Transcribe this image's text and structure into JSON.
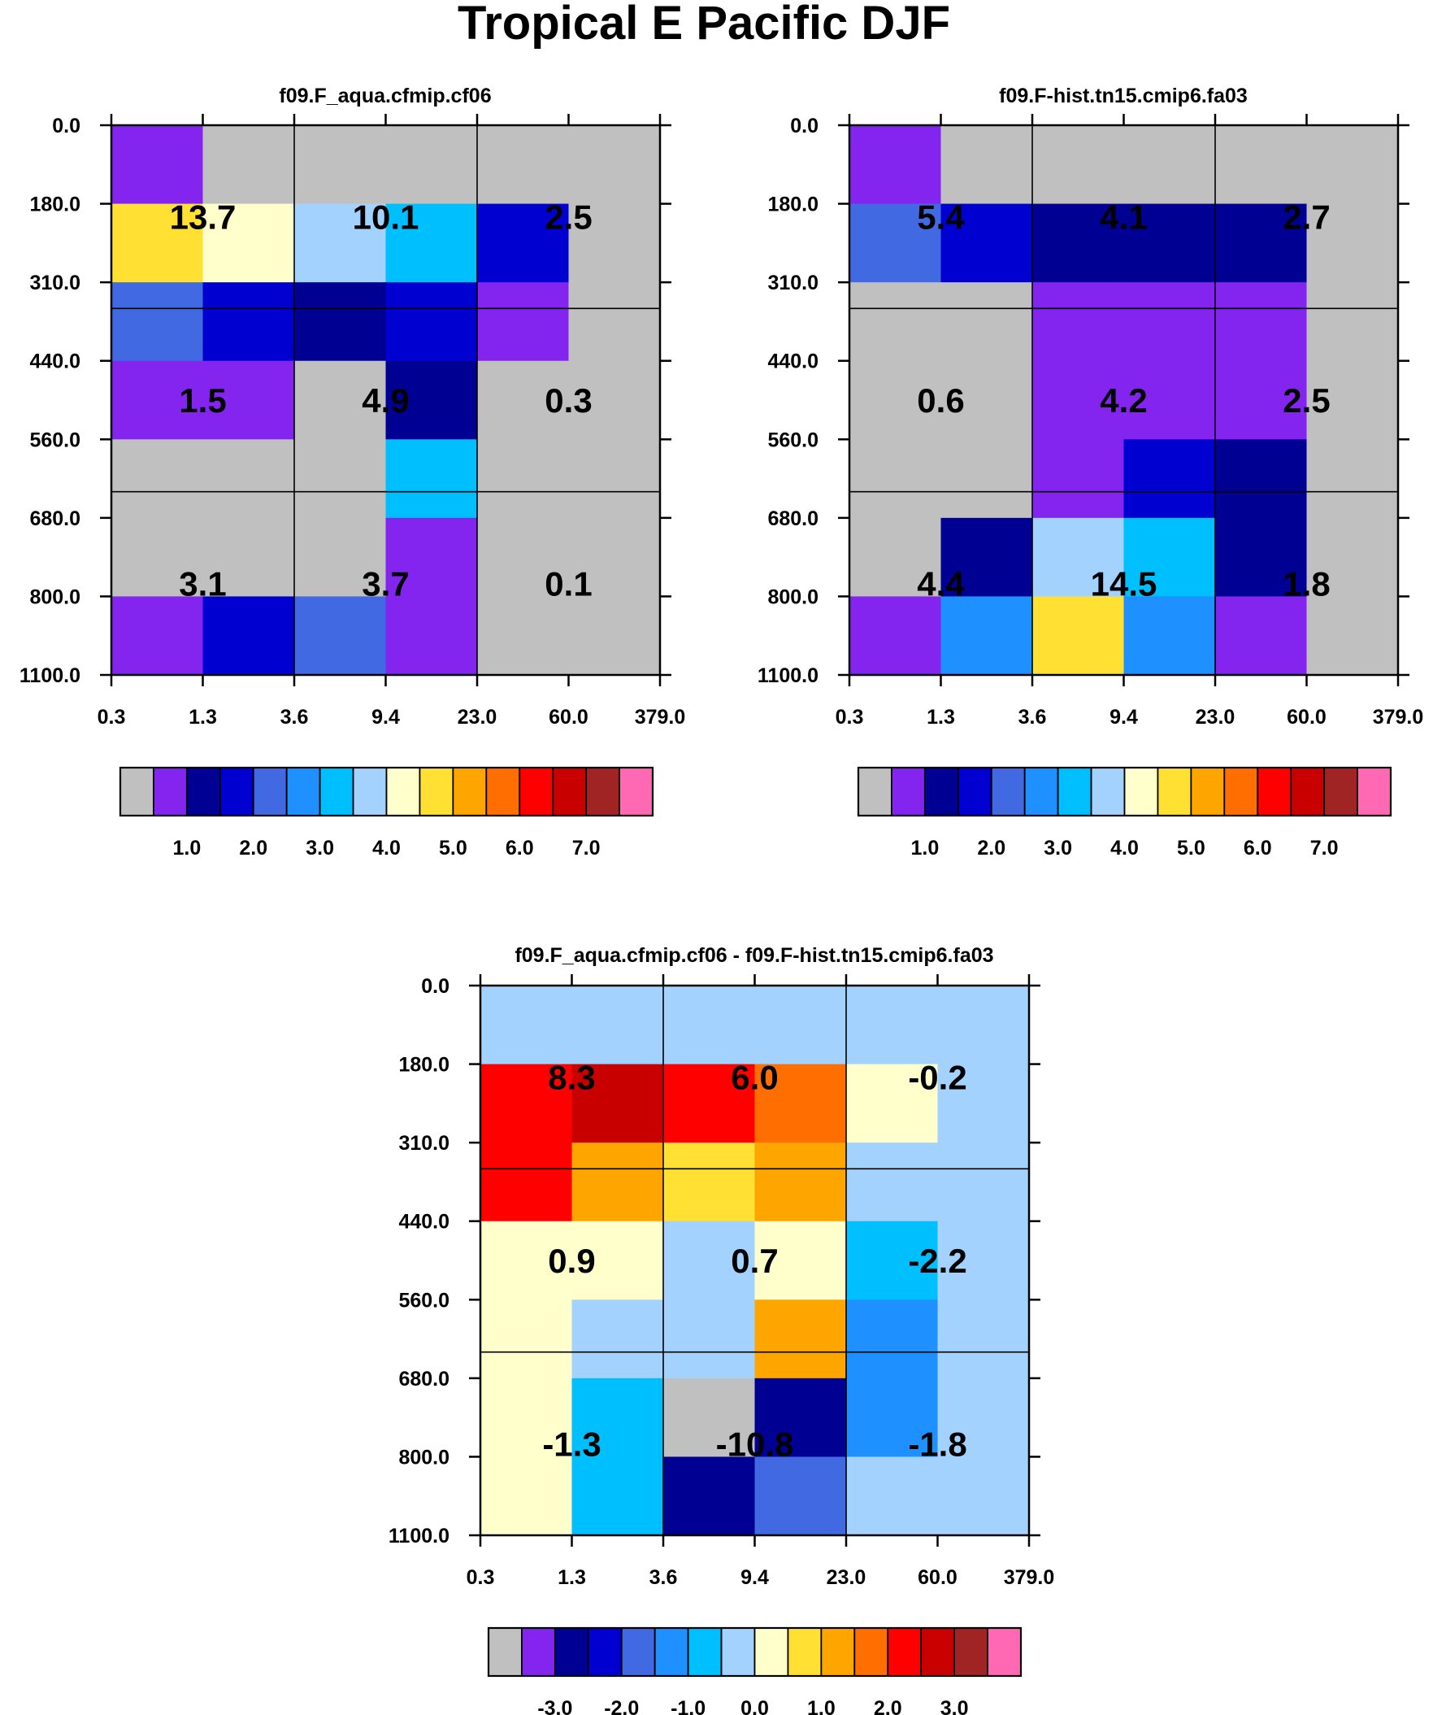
{
  "title": "Tropical E Pacific DJF",
  "colors": {
    "grey": "#c0c0c0",
    "purple": "#8325ef",
    "navy": "#000092",
    "blue": "#0000d0",
    "royal": "#4169e1",
    "dodger": "#1e90ff",
    "sky": "#00bfff",
    "pale": "#a3d2ff",
    "cream": "#ffffcc",
    "yellow": "#ffe033",
    "orange": "#ffa500",
    "darkorange": "#ff6e00",
    "red": "#ff0000",
    "darkred": "#c80000",
    "maroon": "#a02424",
    "pink": "#ff69b4"
  },
  "chart_data": [
    {
      "type": "heatmap",
      "title": "f09.F_aqua.cfmip.cf06",
      "x_ticks": [
        "0.3",
        "1.3",
        "3.6",
        "9.4",
        "23.0",
        "60.0",
        "379.0"
      ],
      "y_ticks": [
        "0.0",
        "180.0",
        "310.0",
        "440.0",
        "560.0",
        "680.0",
        "800.0",
        "1100.0"
      ],
      "cells": [
        [
          "purple",
          "grey",
          "grey",
          "grey",
          "grey",
          "grey"
        ],
        [
          "yellow",
          "cream",
          "pale",
          "sky",
          "blue",
          "grey"
        ],
        [
          "royal",
          "blue",
          "navy",
          "blue",
          "purple",
          "grey"
        ],
        [
          "purple",
          "purple",
          "grey",
          "navy",
          "grey",
          "grey"
        ],
        [
          "grey",
          "grey",
          "grey",
          "sky",
          "grey",
          "grey"
        ],
        [
          "grey",
          "grey",
          "grey",
          "purple",
          "grey",
          "grey"
        ],
        [
          "purple",
          "blue",
          "royal",
          "purple",
          "grey",
          "grey"
        ]
      ],
      "labels": [
        [
          "13.7",
          "10.1",
          "2.5"
        ],
        [
          "1.5",
          "4.9",
          "0.3"
        ],
        [
          "3.1",
          "3.7",
          "0.1"
        ]
      ],
      "colorbar": {
        "boxes": [
          "grey",
          "purple",
          "navy",
          "blue",
          "royal",
          "dodger",
          "sky",
          "pale",
          "cream",
          "yellow",
          "orange",
          "darkorange",
          "red",
          "darkred",
          "maroon",
          "pink"
        ],
        "labels": [
          "1.0",
          "2.0",
          "3.0",
          "4.0",
          "5.0",
          "6.0",
          "7.0"
        ]
      }
    },
    {
      "type": "heatmap",
      "title": "f09.F-hist.tn15.cmip6.fa03",
      "x_ticks": [
        "0.3",
        "1.3",
        "3.6",
        "9.4",
        "23.0",
        "60.0",
        "379.0"
      ],
      "y_ticks": [
        "0.0",
        "180.0",
        "310.0",
        "440.0",
        "560.0",
        "680.0",
        "800.0",
        "1100.0"
      ],
      "cells": [
        [
          "purple",
          "grey",
          "grey",
          "grey",
          "grey",
          "grey"
        ],
        [
          "royal",
          "blue",
          "navy",
          "navy",
          "navy",
          "grey"
        ],
        [
          "grey",
          "grey",
          "purple",
          "purple",
          "purple",
          "grey"
        ],
        [
          "grey",
          "grey",
          "purple",
          "purple",
          "purple",
          "grey"
        ],
        [
          "grey",
          "grey",
          "purple",
          "blue",
          "navy",
          "grey"
        ],
        [
          "grey",
          "navy",
          "pale",
          "sky",
          "navy",
          "grey"
        ],
        [
          "purple",
          "dodger",
          "yellow",
          "dodger",
          "purple",
          "grey"
        ]
      ],
      "labels": [
        [
          "5.4",
          "4.1",
          "2.7"
        ],
        [
          "0.6",
          "4.2",
          "2.5"
        ],
        [
          "4.4",
          "14.5",
          "1.8"
        ]
      ],
      "colorbar": {
        "boxes": [
          "grey",
          "purple",
          "navy",
          "blue",
          "royal",
          "dodger",
          "sky",
          "pale",
          "cream",
          "yellow",
          "orange",
          "darkorange",
          "red",
          "darkred",
          "maroon",
          "pink"
        ],
        "labels": [
          "1.0",
          "2.0",
          "3.0",
          "4.0",
          "5.0",
          "6.0",
          "7.0"
        ]
      }
    },
    {
      "type": "heatmap",
      "title": "f09.F_aqua.cfmip.cf06 - f09.F-hist.tn15.cmip6.fa03",
      "x_ticks": [
        "0.3",
        "1.3",
        "3.6",
        "9.4",
        "23.0",
        "60.0",
        "379.0"
      ],
      "y_ticks": [
        "0.0",
        "180.0",
        "310.0",
        "440.0",
        "560.0",
        "680.0",
        "800.0",
        "1100.0"
      ],
      "cells": [
        [
          "pale",
          "pale",
          "pale",
          "pale",
          "pale",
          "pale"
        ],
        [
          "red",
          "darkred",
          "red",
          "darkorange",
          "cream",
          "pale"
        ],
        [
          "red",
          "orange",
          "yellow",
          "orange",
          "pale",
          "pale"
        ],
        [
          "cream",
          "cream",
          "pale",
          "cream",
          "sky",
          "pale"
        ],
        [
          "cream",
          "pale",
          "pale",
          "orange",
          "dodger",
          "pale"
        ],
        [
          "cream",
          "sky",
          "grey",
          "navy",
          "dodger",
          "pale"
        ],
        [
          "cream",
          "sky",
          "navy",
          "royal",
          "pale",
          "pale"
        ]
      ],
      "labels": [
        [
          "8.3",
          "6.0",
          "-0.2"
        ],
        [
          "0.9",
          "0.7",
          "-2.2"
        ],
        [
          "-1.3",
          "-10.8",
          "-1.8"
        ]
      ],
      "colorbar": {
        "boxes": [
          "grey",
          "purple",
          "navy",
          "blue",
          "royal",
          "dodger",
          "sky",
          "pale",
          "cream",
          "yellow",
          "orange",
          "darkorange",
          "red",
          "darkred",
          "maroon",
          "pink"
        ],
        "labels": [
          "-3.0",
          "-2.0",
          "-1.0",
          "0.0",
          "1.0",
          "2.0",
          "3.0"
        ]
      }
    }
  ]
}
